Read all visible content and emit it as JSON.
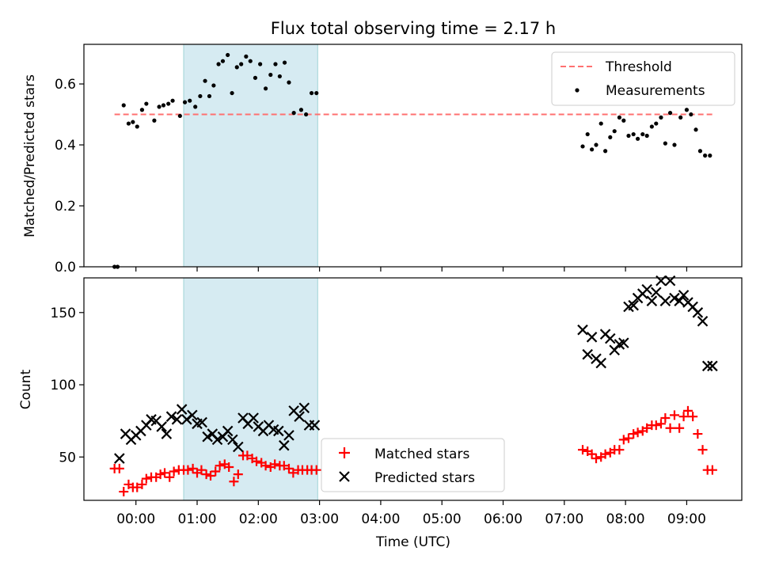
{
  "chart_data": {
    "title": "Flux total observing time = 2.17 h",
    "xlabel": "Time (UTC)",
    "x_unit": "hours UTC",
    "xlim": [
      -0.85,
      9.9
    ],
    "xticks": [
      0,
      1,
      2,
      3,
      4,
      5,
      6,
      7,
      8,
      9
    ],
    "xtick_labels": [
      "00:00",
      "01:00",
      "02:00",
      "03:00",
      "04:00",
      "05:00",
      "06:00",
      "07:00",
      "08:00",
      "09:00"
    ],
    "highlight_span": {
      "x0": 0.78,
      "x1": 2.97,
      "color": "#add8e6"
    },
    "panels": [
      {
        "type": "scatter",
        "ylabel": "Matched/Predicted stars",
        "ylim": [
          0,
          0.73
        ],
        "yticks": [
          0.0,
          0.2,
          0.4,
          0.6
        ],
        "ytick_labels": [
          "0.0",
          "0.2",
          "0.4",
          "0.6"
        ],
        "legend_position": "top-right",
        "threshold": {
          "name": "Threshold",
          "y": 0.5,
          "x_range": [
            -0.35,
            9.45
          ],
          "color": "#ff7070"
        },
        "series": [
          {
            "name": "Measurements",
            "marker": "dot",
            "color": "#000000",
            "x": [
              -0.35,
              -0.3,
              -0.2,
              -0.12,
              -0.05,
              0.02,
              0.1,
              0.17,
              0.3,
              0.38,
              0.45,
              0.53,
              0.6,
              0.72,
              0.8,
              0.88,
              0.97,
              1.05,
              1.13,
              1.2,
              1.27,
              1.35,
              1.42,
              1.5,
              1.57,
              1.65,
              1.72,
              1.8,
              1.87,
              1.95,
              2.03,
              2.12,
              2.2,
              2.28,
              2.35,
              2.43,
              2.5,
              2.58,
              2.7,
              2.78,
              2.87,
              2.95,
              7.3,
              7.38,
              7.45,
              7.52,
              7.6,
              7.67,
              7.75,
              7.82,
              7.9,
              7.97,
              8.05,
              8.13,
              8.2,
              8.28,
              8.35,
              8.43,
              8.5,
              8.58,
              8.65,
              8.73,
              8.8,
              8.9,
              9.0,
              9.07,
              9.15,
              9.22,
              9.3,
              9.38
            ],
            "y": [
              0.0,
              0.0,
              0.53,
              0.47,
              0.475,
              0.46,
              0.515,
              0.535,
              0.48,
              0.525,
              0.53,
              0.535,
              0.545,
              0.495,
              0.54,
              0.545,
              0.525,
              0.56,
              0.61,
              0.56,
              0.595,
              0.665,
              0.675,
              0.695,
              0.57,
              0.655,
              0.665,
              0.69,
              0.675,
              0.62,
              0.665,
              0.585,
              0.63,
              0.665,
              0.625,
              0.67,
              0.605,
              0.505,
              0.515,
              0.5,
              0.57,
              0.57,
              0.395,
              0.435,
              0.385,
              0.4,
              0.47,
              0.38,
              0.425,
              0.445,
              0.49,
              0.48,
              0.43,
              0.435,
              0.42,
              0.435,
              0.43,
              0.46,
              0.47,
              0.49,
              0.405,
              0.505,
              0.4,
              0.49,
              0.515,
              0.5,
              0.45,
              0.38,
              0.365,
              0.365
            ]
          }
        ]
      },
      {
        "type": "scatter",
        "ylabel": "Count",
        "ylim": [
          20,
          174
        ],
        "yticks": [
          50,
          100,
          150
        ],
        "ytick_labels": [
          "50",
          "100",
          "150"
        ],
        "legend_position": "lower-center",
        "series": [
          {
            "name": "Matched stars",
            "marker": "plus",
            "color": "#ff0000",
            "x": [
              -0.35,
              -0.27,
              -0.2,
              -0.12,
              -0.05,
              0.02,
              0.1,
              0.17,
              0.25,
              0.33,
              0.4,
              0.47,
              0.55,
              0.62,
              0.7,
              0.78,
              0.85,
              0.93,
              1.0,
              1.07,
              1.15,
              1.22,
              1.3,
              1.37,
              1.45,
              1.52,
              1.6,
              1.67,
              1.75,
              1.82,
              1.9,
              1.97,
              2.05,
              2.12,
              2.2,
              2.27,
              2.35,
              2.42,
              2.5,
              2.57,
              2.65,
              2.72,
              2.8,
              2.87,
              2.95,
              7.3,
              7.38,
              7.45,
              7.52,
              7.6,
              7.67,
              7.75,
              7.82,
              7.9,
              7.97,
              8.05,
              8.13,
              8.2,
              8.28,
              8.35,
              8.43,
              8.5,
              8.58,
              8.65,
              8.73,
              8.8,
              8.88,
              8.95,
              9.02,
              9.1,
              9.18,
              9.26,
              9.34,
              9.42
            ],
            "y": [
              42,
              42,
              26,
              31,
              29,
              29,
              31,
              35,
              36,
              36,
              38,
              39,
              36,
              40,
              41,
              41,
              41,
              42,
              39,
              41,
              38,
              37,
              40,
              44,
              45,
              43,
              33,
              38,
              51,
              51,
              49,
              47,
              46,
              44,
              43,
              45,
              44,
              44,
              42,
              39,
              41,
              41,
              41,
              41,
              41,
              55,
              54,
              52,
              49,
              50,
              52,
              53,
              55,
              55,
              62,
              63,
              66,
              67,
              68,
              70,
              72,
              72,
              73,
              77,
              70,
              79,
              70,
              78,
              82,
              78,
              66,
              55,
              41,
              41
            ]
          },
          {
            "name": "Predicted stars",
            "marker": "x",
            "color": "#000000",
            "x": [
              -0.27,
              -0.17,
              -0.08,
              0.0,
              0.08,
              0.17,
              0.25,
              0.33,
              0.42,
              0.5,
              0.58,
              0.67,
              0.75,
              0.83,
              0.92,
              1.0,
              1.08,
              1.17,
              1.25,
              1.33,
              1.42,
              1.5,
              1.58,
              1.67,
              1.75,
              1.83,
              1.92,
              2.0,
              2.08,
              2.17,
              2.25,
              2.33,
              2.42,
              2.5,
              2.58,
              2.67,
              2.75,
              2.83,
              2.92,
              7.3,
              7.38,
              7.45,
              7.52,
              7.6,
              7.67,
              7.75,
              7.82,
              7.9,
              7.97,
              8.05,
              8.13,
              8.2,
              8.28,
              8.35,
              8.43,
              8.5,
              8.58,
              8.65,
              8.73,
              8.8,
              8.88,
              8.95,
              9.02,
              9.1,
              9.18,
              9.26,
              9.34,
              9.42
            ],
            "y": [
              49,
              66,
              62,
              65,
              68,
              72,
              76,
              75,
              71,
              66,
              78,
              76,
              83,
              76,
              79,
              73,
              74,
              64,
              66,
              62,
              64,
              68,
              62,
              57,
              77,
              73,
              77,
              71,
              68,
              72,
              69,
              68,
              58,
              65,
              82,
              78,
              84,
              72,
              72,
              138,
              121,
              133,
              118,
              115,
              135,
              132,
              124,
              128,
              129,
              154,
              155,
              160,
              163,
              166,
              158,
              164,
              172,
              158,
              172,
              160,
              158,
              162,
              157,
              154,
              150,
              144,
              113,
              113
            ]
          }
        ]
      }
    ]
  }
}
